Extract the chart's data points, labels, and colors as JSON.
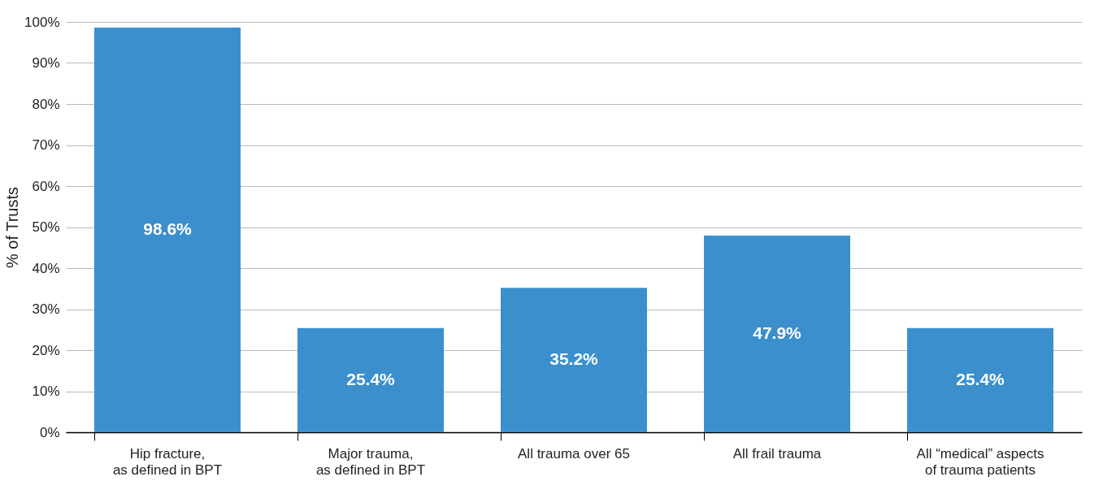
{
  "chart_data": {
    "type": "bar",
    "ylabel": "% of Trusts",
    "categories": [
      "Hip fracture,\nas defined in BPT",
      "Major trauma,\nas defined in BPT",
      "All trauma over 65",
      "All frail trauma",
      "All “medical” aspects\nof trauma patients"
    ],
    "values": [
      98.6,
      25.4,
      35.2,
      47.9,
      25.4
    ],
    "value_labels": [
      "98.6%",
      "25.4%",
      "35.2%",
      "47.9%",
      "25.4%"
    ],
    "color": "#3a8fcc",
    "ylim": [
      0,
      100
    ],
    "yticks": [
      {
        "value": 0,
        "label": "0%"
      },
      {
        "value": 10,
        "label": "10%"
      },
      {
        "value": 20,
        "label": "20%"
      },
      {
        "value": 30,
        "label": "30%"
      },
      {
        "value": 40,
        "label": "40%"
      },
      {
        "value": 50,
        "label": "50%"
      },
      {
        "value": 60,
        "label": "60%"
      },
      {
        "value": 70,
        "label": "70%"
      },
      {
        "value": 80,
        "label": "80%"
      },
      {
        "value": 90,
        "label": "90%"
      },
      {
        "value": 100,
        "label": "100%"
      }
    ],
    "grid": "y"
  }
}
